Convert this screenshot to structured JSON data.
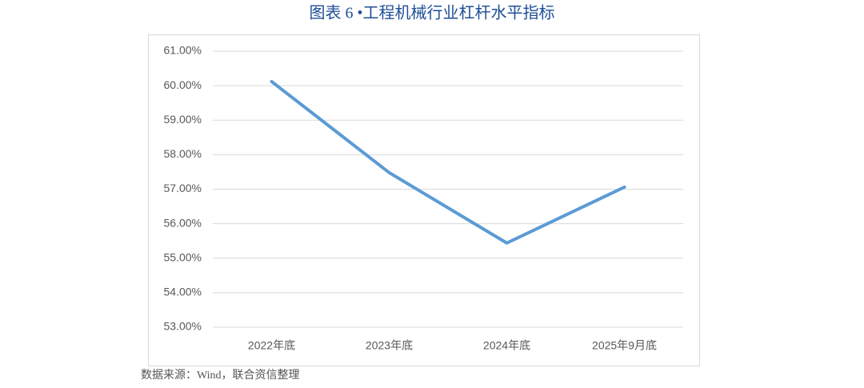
{
  "chart_data": {
    "type": "line",
    "title": "图表 6 •工程机械行业杠杆水平指标",
    "source": "数据来源：Wind，联合资信整理",
    "categories": [
      "2022年底",
      "2023年底",
      "2024年底",
      "2025年9月底"
    ],
    "values": [
      60.12,
      57.48,
      55.44,
      57.06
    ],
    "color": "#5b9bd5",
    "ylim": [
      53,
      61
    ],
    "yticks": [
      {
        "value": 53,
        "label": "53.00%"
      },
      {
        "value": 54,
        "label": "54.00%"
      },
      {
        "value": 55,
        "label": "55.00%"
      },
      {
        "value": 56,
        "label": "56.00%"
      },
      {
        "value": 57,
        "label": "57.00%"
      },
      {
        "value": 58,
        "label": "58.00%"
      },
      {
        "value": 59,
        "label": "59.00%"
      },
      {
        "value": 60,
        "label": "60.00%"
      },
      {
        "value": 61,
        "label": "61.00%"
      }
    ],
    "grid": true
  }
}
